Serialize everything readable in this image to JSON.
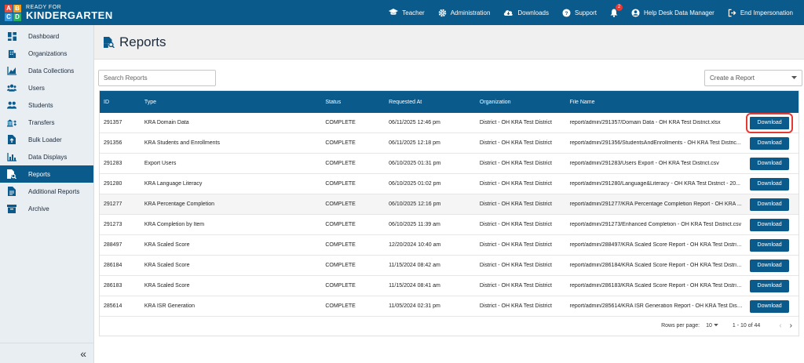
{
  "brand": {
    "blocks": [
      "A",
      "B",
      "C",
      "D"
    ],
    "small": "READY FOR",
    "big": "KINDERGARTEN"
  },
  "topnav": [
    {
      "icon": "graduation-cap-icon",
      "label": "Teacher"
    },
    {
      "icon": "gear-icon",
      "label": "Administration"
    },
    {
      "icon": "cloud-download-icon",
      "label": "Downloads"
    },
    {
      "icon": "help-icon",
      "label": "Support"
    },
    {
      "icon": "user-circle-icon",
      "label": "Help Desk Data Manager"
    },
    {
      "icon": "sign-out-icon",
      "label": "End Impersonation"
    }
  ],
  "notifications": {
    "count": "2"
  },
  "sidebar": {
    "items": [
      {
        "icon": "dashboard-icon",
        "label": "Dashboard"
      },
      {
        "icon": "building-icon",
        "label": "Organizations"
      },
      {
        "icon": "chart-area-icon",
        "label": "Data Collections"
      },
      {
        "icon": "users-icon",
        "label": "Users"
      },
      {
        "icon": "students-icon",
        "label": "Students"
      },
      {
        "icon": "transfer-icon",
        "label": "Transfers"
      },
      {
        "icon": "file-upload-icon",
        "label": "Bulk Loader"
      },
      {
        "icon": "bar-chart-icon",
        "label": "Data Displays"
      },
      {
        "icon": "report-search-icon",
        "label": "Reports"
      },
      {
        "icon": "document-icon",
        "label": "Additional Reports"
      },
      {
        "icon": "archive-icon",
        "label": "Archive"
      }
    ],
    "active": "Reports",
    "collapse": "«"
  },
  "page": {
    "title": "Reports"
  },
  "search": {
    "placeholder": "Search Reports"
  },
  "create": {
    "label": "Create a Report"
  },
  "table": {
    "headers": {
      "id": "ID",
      "type": "Type",
      "status": "Status",
      "requested": "Requested At",
      "org": "Organization",
      "file": "File Name"
    },
    "rows": [
      {
        "id": "291357",
        "type": "KRA Domain Data",
        "status": "COMPLETE",
        "requested": "06/11/2025 12:46 pm",
        "org": "District - OH KRA Test District",
        "file": "report/admin/291357/Domain Data - OH KRA Test District.xlsx",
        "action": "Download"
      },
      {
        "id": "291356",
        "type": "KRA Students and Enrollments",
        "status": "COMPLETE",
        "requested": "06/11/2025 12:18 pm",
        "org": "District - OH KRA Test District",
        "file": "report/admin/291356/StudentsAndEnrollments - OH KRA Test Distric...",
        "action": "Download"
      },
      {
        "id": "291283",
        "type": "Export Users",
        "status": "COMPLETE",
        "requested": "06/10/2025 01:31 pm",
        "org": "District - OH KRA Test District",
        "file": "report/admin/291283/Users Export - OH KRA Test District.csv",
        "action": "Download"
      },
      {
        "id": "291280",
        "type": "KRA Language Literacy",
        "status": "COMPLETE",
        "requested": "06/10/2025 01:02 pm",
        "org": "District - OH KRA Test District",
        "file": "report/admin/291280/Language&Literacy - OH KRA Test District - 20...",
        "action": "Download"
      },
      {
        "id": "291277",
        "type": "KRA Percentage Completion",
        "status": "COMPLETE",
        "requested": "06/10/2025 12:16 pm",
        "org": "District - OH KRA Test District",
        "file": "report/admin/291277/KRA Percentage Completion Report - OH KRA ...",
        "action": "Download"
      },
      {
        "id": "291273",
        "type": "KRA Completion by Item",
        "status": "COMPLETE",
        "requested": "06/10/2025 11:39 am",
        "org": "District - OH KRA Test District",
        "file": "report/admin/291273/Enhanced Completion - OH KRA Test District.csv",
        "action": "Download"
      },
      {
        "id": "288497",
        "type": "KRA Scaled Score",
        "status": "COMPLETE",
        "requested": "12/20/2024 10:40 am",
        "org": "District - OH KRA Test District",
        "file": "report/admin/288497/KRA Scaled Score Report - OH KRA Test Distric...",
        "action": "Download"
      },
      {
        "id": "286184",
        "type": "KRA Scaled Score",
        "status": "COMPLETE",
        "requested": "11/15/2024 08:42 am",
        "org": "District - OH KRA Test District",
        "file": "report/admin/286184/KRA Scaled Score Report - OH KRA Test Distric...",
        "action": "Download"
      },
      {
        "id": "286183",
        "type": "KRA Scaled Score",
        "status": "COMPLETE",
        "requested": "11/15/2024 08:41 am",
        "org": "District - OH KRA Test District",
        "file": "report/admin/286183/KRA Scaled Score Report - OH KRA Test Distric...",
        "action": "Download"
      },
      {
        "id": "285614",
        "type": "KRA ISR Generation",
        "status": "COMPLETE",
        "requested": "11/05/2024 02:31 pm",
        "org": "District - OH KRA Test District",
        "file": "report/admin/285614/KRA ISR Generation Report - OH KRA Test Distric...",
        "action": "Download"
      }
    ]
  },
  "pagination": {
    "rows_label": "Rows per page:",
    "rows_value": "10",
    "range": "1 - 10 of 44",
    "prev": "‹",
    "next": "›"
  },
  "colors": {
    "primary": "#0a5a8c",
    "highlight": "#e53935"
  }
}
